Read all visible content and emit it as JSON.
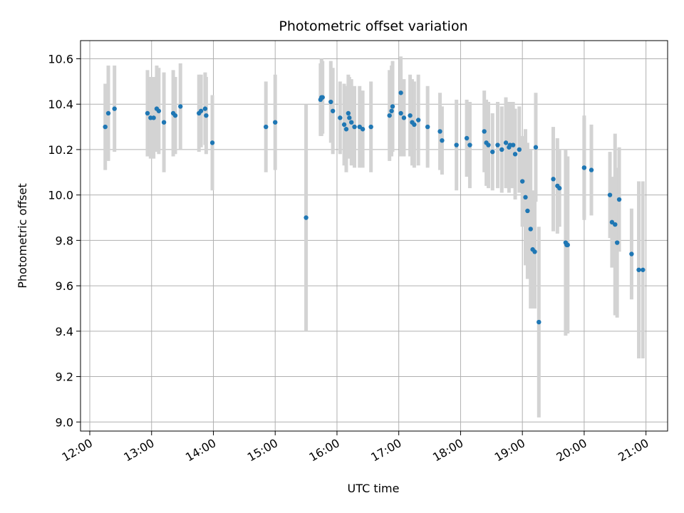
{
  "chart_data": {
    "type": "scatter",
    "title": "Photometric offset variation",
    "xlabel": "UTC time",
    "ylabel": "Photometric offset",
    "x_unit": "UTC time (HH:MM)",
    "xlim": [
      "11:51",
      "21:21"
    ],
    "ylim": [
      8.96,
      10.68
    ],
    "x_ticks": [
      "12:00",
      "13:00",
      "14:00",
      "15:00",
      "16:00",
      "17:00",
      "18:00",
      "19:00",
      "20:00",
      "21:00"
    ],
    "y_ticks": [
      "9.0",
      "9.2",
      "9.4",
      "9.6",
      "9.8",
      "10.0",
      "10.2",
      "10.4",
      "10.6"
    ],
    "grid": true,
    "marker_color": "#1f77b4",
    "errorbar_color": "#d3d3d3",
    "series": [
      {
        "x": [
          "12:15",
          "12:18",
          "12:24",
          "12:56",
          "12:59",
          "13:02",
          "13:05",
          "13:07",
          "13:12",
          "13:21",
          "13:23",
          "13:28",
          "13:46",
          "13:48",
          "13:52",
          "13:53",
          "13:59",
          "14:51",
          "15:00",
          "15:30",
          "15:44",
          "15:45",
          "15:46",
          "15:54",
          "15:56",
          "16:03",
          "16:07",
          "16:09",
          "16:11",
          "16:12",
          "16:14",
          "16:17",
          "16:22",
          "16:25",
          "16:33",
          "16:51",
          "16:53",
          "16:54",
          "17:02",
          "17:02",
          "17:05",
          "17:11",
          "17:13",
          "17:15",
          "17:19",
          "17:28",
          "17:40",
          "17:42",
          "17:56",
          "18:06",
          "18:09",
          "18:23",
          "18:25",
          "18:27",
          "18:31",
          "18:36",
          "18:40",
          "18:44",
          "18:47",
          "18:48",
          "18:51",
          "18:53",
          "18:57",
          "19:00",
          "19:03",
          "19:05",
          "19:08",
          "19:10",
          "19:12",
          "19:13",
          "19:16",
          "19:30",
          "19:34",
          "19:36",
          "19:42",
          "19:43",
          "19:44",
          "20:00",
          "20:00",
          "20:07",
          "20:25",
          "20:27",
          "20:30",
          "20:32",
          "20:34",
          "20:46",
          "20:53",
          "20:57"
        ],
        "y": [
          10.3,
          10.36,
          10.38,
          10.36,
          10.34,
          10.34,
          10.38,
          10.37,
          10.32,
          10.36,
          10.35,
          10.39,
          10.36,
          10.37,
          10.38,
          10.35,
          10.23,
          10.3,
          10.32,
          9.9,
          10.42,
          10.43,
          10.43,
          10.41,
          10.37,
          10.34,
          10.31,
          10.29,
          10.36,
          10.34,
          10.32,
          10.3,
          10.3,
          10.29,
          10.3,
          10.35,
          10.37,
          10.39,
          10.45,
          10.36,
          10.34,
          10.35,
          10.32,
          10.31,
          10.33,
          10.3,
          10.28,
          10.24,
          10.22,
          10.25,
          10.22,
          10.28,
          10.23,
          10.22,
          10.19,
          10.22,
          10.2,
          10.23,
          10.21,
          10.22,
          10.22,
          10.18,
          10.2,
          10.06,
          9.99,
          9.93,
          9.85,
          9.76,
          9.75,
          10.21,
          9.44,
          10.07,
          10.04,
          10.03,
          9.79,
          9.78,
          9.78,
          10.12,
          10.12,
          10.11,
          10.0,
          9.88,
          9.87,
          9.79,
          9.98,
          9.74,
          9.67,
          9.67
        ],
        "yerr": [
          0.19,
          0.21,
          0.19,
          0.19,
          0.18,
          0.18,
          0.19,
          0.19,
          0.22,
          0.19,
          0.17,
          0.19,
          0.17,
          0.16,
          0.16,
          0.17,
          0.21,
          0.2,
          0.21,
          0.5,
          0.16,
          0.17,
          0.16,
          0.18,
          0.19,
          0.16,
          0.18,
          0.19,
          0.17,
          0.18,
          0.19,
          0.18,
          0.18,
          0.17,
          0.2,
          0.2,
          0.2,
          0.2,
          0.16,
          0.19,
          0.17,
          0.18,
          0.19,
          0.19,
          0.2,
          0.18,
          0.17,
          0.15,
          0.2,
          0.17,
          0.19,
          0.18,
          0.19,
          0.19,
          0.17,
          0.19,
          0.19,
          0.2,
          0.2,
          0.19,
          0.19,
          0.2,
          0.19,
          0.2,
          0.3,
          0.3,
          0.35,
          0.26,
          0.25,
          0.24,
          0.42,
          0.23,
          0.21,
          0.17,
          0.41,
          0.39,
          0.39,
          0.23,
          0.22,
          0.2,
          0.19,
          0.2,
          0.4,
          0.33,
          0.23,
          0.2,
          0.39,
          0.39
        ]
      }
    ]
  }
}
